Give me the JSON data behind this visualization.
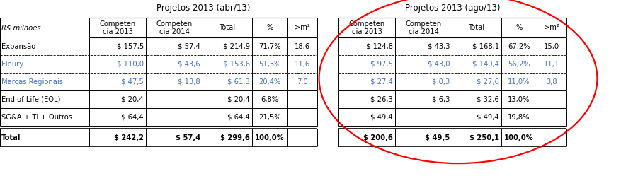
{
  "title1": "Projetos 2013 (abr/13)",
  "title2": "Projetos 2013 (ago/13)",
  "header_label": "R$ milhões",
  "left_table": {
    "rows": [
      {
        "label": "Expansão",
        "c2013": "$ 157,5",
        "c2014": "$ 57,4",
        "total": "$ 214,9",
        "pct": "71,7%",
        "m2": "18,6",
        "color": "#000000",
        "bold": false,
        "dashed_below": true
      },
      {
        "label": "Fleury",
        "c2013": "$ 110,0",
        "c2014": "$ 43,6",
        "total": "$ 153,6",
        "pct": "51,3%",
        "m2": "11,6",
        "color": "#4472C4",
        "bold": false,
        "dashed_below": true
      },
      {
        "label": "Marcas Regionais",
        "c2013": "$ 47,5",
        "c2014": "$ 13,8",
        "total": "$ 61,3",
        "pct": "20,4%",
        "m2": "7,0",
        "color": "#4472C4",
        "bold": false,
        "dashed_below": false
      },
      {
        "label": "End of Life (EOL)",
        "c2013": "$ 20,4",
        "c2014": "",
        "total": "$ 20,4",
        "pct": "6,8%",
        "m2": "",
        "color": "#000000",
        "bold": false,
        "dashed_below": false
      },
      {
        "label": "SG&A + TI + Outros",
        "c2013": "$ 64,4",
        "c2014": "",
        "total": "$ 64,4",
        "pct": "21,5%",
        "m2": "",
        "color": "#000000",
        "bold": false,
        "dashed_below": false
      }
    ],
    "total": {
      "label": "Total",
      "c2013": "$ 242,2",
      "c2014": "$ 57,4",
      "total": "$ 299,6",
      "pct": "100,0%"
    }
  },
  "right_table": {
    "rows": [
      {
        "c2013": "$ 124,8",
        "c2014": "$ 43,3",
        "total": "$ 168,1",
        "pct": "67,2%",
        "m2": "15,0",
        "color": "#000000",
        "bold": false,
        "dashed_below": true
      },
      {
        "c2013": "$ 97,5",
        "c2014": "$ 43,0",
        "total": "$ 140,4",
        "pct": "56,2%",
        "m2": "11,1",
        "color": "#4472C4",
        "bold": false,
        "dashed_below": true
      },
      {
        "c2013": "$ 27,4",
        "c2014": "$ 0,3",
        "total": "$ 27,6",
        "pct": "11,0%",
        "m2": "3,8",
        "color": "#4472C4",
        "bold": false,
        "dashed_below": false
      },
      {
        "c2013": "$ 26,3",
        "c2014": "$ 6,3",
        "total": "$ 32,6",
        "pct": "13,0%",
        "m2": "",
        "color": "#000000",
        "bold": false,
        "dashed_below": false
      },
      {
        "c2013": "$ 49,4",
        "c2014": "",
        "total": "$ 49,4",
        "pct": "19,8%",
        "m2": "",
        "color": "#000000",
        "bold": false,
        "dashed_below": false
      }
    ],
    "total": {
      "c2013": "$ 200,6",
      "c2014": "$ 49,5",
      "total": "$ 250,1",
      "pct": "100,0%"
    }
  },
  "figsize": [
    8.77,
    2.49
  ],
  "dpi": 100
}
